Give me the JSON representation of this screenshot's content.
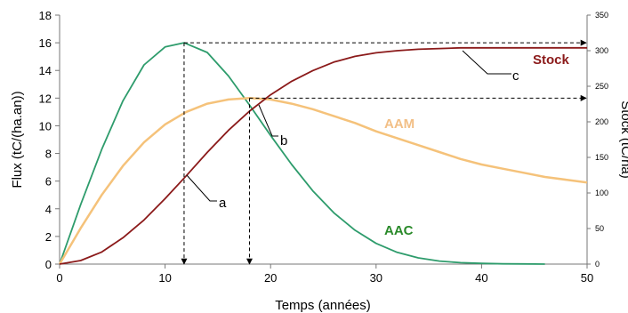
{
  "chart_data": {
    "type": "line",
    "xlabel": "Temps (années)",
    "ylabel": "Flux (tC/(ha.an))",
    "y2label": "Stock (tC/ha)",
    "xlim": [
      0,
      50
    ],
    "ylim": [
      0,
      18
    ],
    "y2lim": [
      0,
      350
    ],
    "xticks": [
      "0",
      "10",
      "20",
      "30",
      "40",
      "50"
    ],
    "yticks": [
      "0",
      "2",
      "4",
      "6",
      "8",
      "10",
      "12",
      "14",
      "16",
      "18"
    ],
    "y2ticks": [
      "0",
      "50",
      "100",
      "150",
      "200",
      "250",
      "300",
      "350"
    ],
    "grid": false,
    "series": [
      {
        "name": "AAC",
        "axis": "left",
        "color": "#2e9c6c",
        "label_color": "#2a8a2a",
        "x": [
          0,
          2,
          4,
          6,
          8,
          10,
          11.8,
          14,
          16,
          18,
          20,
          22,
          24,
          26,
          28,
          30,
          32,
          34,
          36,
          38,
          40,
          42,
          44,
          46
        ],
        "values": [
          0,
          4.3,
          8.3,
          11.8,
          14.4,
          15.7,
          16.0,
          15.3,
          13.6,
          11.5,
          9.3,
          7.2,
          5.3,
          3.7,
          2.45,
          1.5,
          0.85,
          0.45,
          0.22,
          0.1,
          0.05,
          0.02,
          0.01,
          0
        ]
      },
      {
        "name": "AAM",
        "axis": "left",
        "color": "#f5c27a",
        "label_color": "#f2bf86",
        "x": [
          0,
          2,
          4,
          6,
          8,
          10,
          12,
          14,
          16,
          18,
          20,
          22,
          24,
          26,
          28,
          30,
          32,
          34,
          36,
          38,
          40,
          42,
          44,
          46,
          48,
          50
        ],
        "values": [
          0,
          2.6,
          5.0,
          7.1,
          8.8,
          10.1,
          11.0,
          11.6,
          11.9,
          12.0,
          11.9,
          11.6,
          11.2,
          10.7,
          10.2,
          9.6,
          9.1,
          8.6,
          8.1,
          7.6,
          7.2,
          6.9,
          6.6,
          6.3,
          6.1,
          5.9
        ]
      },
      {
        "name": "Stock",
        "axis": "right",
        "color": "#8b1a1a",
        "label_color": "#8b1a1a",
        "x": [
          0,
          2,
          4,
          6,
          8,
          10,
          12,
          14,
          16,
          18,
          20,
          22,
          24,
          26,
          28,
          30,
          32,
          34,
          36,
          38,
          40,
          42,
          44,
          46,
          48,
          50
        ],
        "values": [
          0,
          5,
          17,
          37,
          62,
          92,
          124,
          157,
          188,
          215,
          238,
          257,
          272,
          284,
          292,
          297,
          300,
          302,
          303,
          304,
          304,
          304,
          304,
          304,
          304,
          304
        ]
      }
    ],
    "annotations": [
      {
        "text": "a"
      },
      {
        "text": "b"
      },
      {
        "text": "c"
      }
    ]
  }
}
